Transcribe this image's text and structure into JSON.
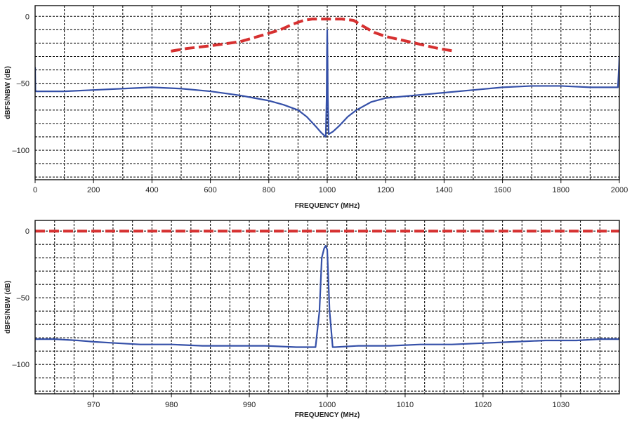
{
  "chart_data": [
    {
      "type": "line",
      "xlabel": "FREQUENCY (MHz)",
      "ylabel": "dBFS/NBW (dB)",
      "xlim": [
        0,
        2000
      ],
      "ylim": [
        -122,
        8
      ],
      "x_ticks": [
        "0",
        "200",
        "400",
        "600",
        "800",
        "1000",
        "1200",
        "1400",
        "1600",
        "1800",
        "2000"
      ],
      "x_tick_values": [
        0,
        200,
        400,
        600,
        800,
        1000,
        1200,
        1400,
        1600,
        1800,
        2000
      ],
      "y_ticks": [
        "0",
        "–50",
        "–100"
      ],
      "y_tick_values": [
        0,
        -50,
        -100
      ],
      "grid": true,
      "grid_x_step": 100,
      "grid_y_step": 10,
      "series": [
        {
          "color": "#d63030",
          "style": "dashed",
          "x": [
            465,
            520,
            600,
            700,
            780,
            840,
            880,
            920,
            950,
            1000,
            1050,
            1090,
            1120,
            1160,
            1200,
            1260,
            1320,
            1380,
            1435
          ],
          "y": [
            -26,
            -24,
            -22,
            -19,
            -14,
            -10,
            -6,
            -3,
            -2,
            -2,
            -2,
            -3,
            -7,
            -12,
            -15,
            -18,
            -21,
            -24,
            -26
          ]
        },
        {
          "color": "#3550a8",
          "style": "solid",
          "x": [
            0,
            1,
            3,
            100,
            200,
            300,
            400,
            500,
            600,
            700,
            750,
            800,
            850,
            900,
            930,
            960,
            980,
            995,
            998,
            999,
            1000,
            1001,
            1002,
            1005,
            1020,
            1040,
            1070,
            1100,
            1150,
            1200,
            1300,
            1400,
            1500,
            1600,
            1700,
            1800,
            1900,
            1995,
            1997,
            1999,
            2000
          ],
          "y": [
            -38,
            -55,
            -56,
            -56,
            -55,
            -54,
            -53,
            -54,
            -56,
            -59,
            -61,
            -63,
            -66,
            -70,
            -75,
            -82,
            -87,
            -90,
            -60,
            -28,
            -10,
            -28,
            -60,
            -88,
            -86,
            -82,
            -75,
            -70,
            -64,
            -61,
            -59,
            -57,
            -55,
            -53,
            -52,
            -52,
            -53,
            -53,
            -45,
            -36,
            -30
          ]
        }
      ]
    },
    {
      "type": "line",
      "xlabel": "FREQUENCY (MHz)",
      "ylabel": "dBFS/NBW (dB)",
      "xlim": [
        962.5,
        1037.5
      ],
      "ylim": [
        -122,
        8
      ],
      "x_ticks": [
        "970",
        "980",
        "990",
        "1000",
        "1010",
        "1020",
        "1030"
      ],
      "x_tick_values": [
        970,
        980,
        990,
        1000,
        1010,
        1020,
        1030
      ],
      "y_ticks": [
        "0",
        "–50",
        "–100"
      ],
      "y_tick_values": [
        0,
        -50,
        -100
      ],
      "grid": true,
      "grid_x_step": 2.5,
      "grid_y_step": 10,
      "series": [
        {
          "color": "#d63030",
          "style": "dashed",
          "x": [
            962.5,
            1037.5
          ],
          "y": [
            0,
            0
          ]
        },
        {
          "color": "#3550a8",
          "style": "solid",
          "x": [
            962.5,
            965,
            968,
            970,
            973,
            976,
            980,
            984,
            988,
            992,
            996,
            998.5,
            999.0,
            999.3,
            999.6,
            999.8,
            1000.0,
            1000.3,
            1000.7,
            1001,
            1004,
            1008,
            1012,
            1016,
            1020,
            1024,
            1028,
            1032,
            1035,
            1037.5
          ],
          "y": [
            -81,
            -81,
            -82,
            -83,
            -84,
            -85,
            -85,
            -86,
            -86,
            -86,
            -87,
            -87,
            -60,
            -20,
            -13,
            -11,
            -14,
            -60,
            -87,
            -87,
            -86,
            -86,
            -85,
            -85,
            -84,
            -83,
            -82,
            -82,
            -81,
            -81
          ]
        }
      ]
    }
  ]
}
